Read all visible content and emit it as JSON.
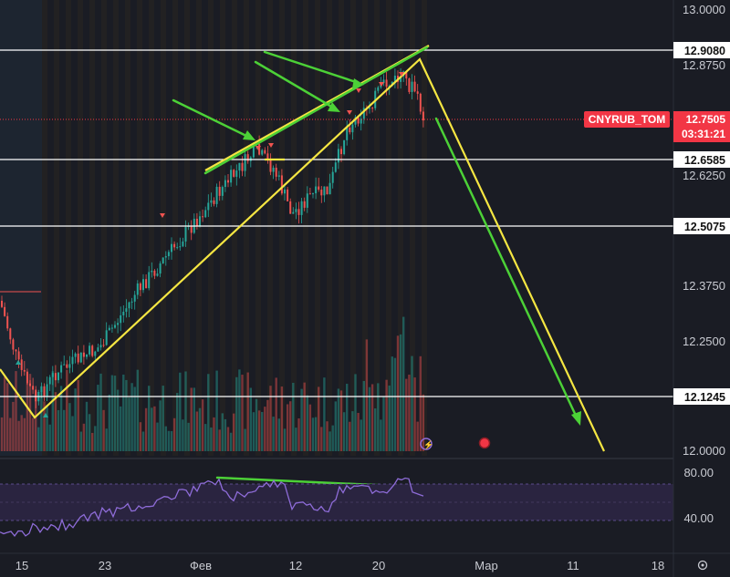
{
  "chart_data": {
    "type": "candlestick",
    "symbol": "CNYRUB_TOM",
    "last_price": "12.7505",
    "countdown": "03:31:21",
    "price_axis_ticks": [
      "13.0000",
      "12.8750",
      "12.6250",
      "12.3750",
      "12.2500",
      "12.0000"
    ],
    "price_range": [
      12.0,
      13.0
    ],
    "horizontal_levels": [
      "12.9080",
      "12.6585",
      "12.5075",
      "12.1245"
    ],
    "time_axis_ticks": [
      "15",
      "23",
      "Фев",
      "12",
      "20",
      "Мар",
      "11",
      "18"
    ],
    "rsi_axis_ticks": [
      "80.00",
      "40.00"
    ],
    "rsi_band": [
      30,
      70
    ],
    "colors": {
      "background": "#1a1c24",
      "up": "#26a69a",
      "down": "#ef5350",
      "hline": "#ffffff",
      "trend_yellow": "#f5e642",
      "arrow_green": "#4cd137",
      "rsi_line": "#8e6cd8",
      "rsi_band_fill": "#2a2440",
      "last_price": "#f23645"
    }
  }
}
